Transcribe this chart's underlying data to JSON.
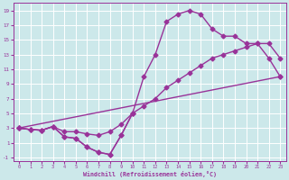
{
  "bg_color": "#cce8ea",
  "grid_color": "#ffffff",
  "line_color": "#993399",
  "marker_size": 2.5,
  "line_width": 1.0,
  "xlabel": "Windchill (Refroidissement éolien,°C)",
  "xlim": [
    -0.5,
    23.5
  ],
  "ylim": [
    -1.5,
    20
  ],
  "xticks": [
    0,
    1,
    2,
    3,
    4,
    5,
    6,
    7,
    8,
    9,
    10,
    11,
    12,
    13,
    14,
    15,
    16,
    17,
    18,
    19,
    20,
    21,
    22,
    23
  ],
  "yticks": [
    -1,
    1,
    3,
    5,
    7,
    9,
    11,
    13,
    15,
    17,
    19
  ],
  "curve1": {
    "x": [
      0,
      1,
      2,
      3,
      4,
      5,
      6,
      7,
      8,
      9,
      10,
      11,
      12,
      13,
      14,
      15,
      16,
      17,
      18,
      19,
      20,
      21,
      22,
      23
    ],
    "y": [
      3,
      2.8,
      2.7,
      3.2,
      1.8,
      1.6,
      0.4,
      -0.3,
      -0.6,
      2.0,
      5.0,
      10.0,
      13.0,
      17.5,
      18.5,
      19.0,
      18.5,
      16.5,
      15.5,
      15.5,
      14.5,
      14.5,
      12.5,
      10.0
    ]
  },
  "curve2": {
    "x": [
      0,
      1,
      2,
      3,
      4,
      5,
      6,
      7,
      8,
      9,
      10,
      11,
      12,
      13,
      14,
      15,
      16,
      17,
      18,
      19,
      20,
      21,
      22,
      23
    ],
    "y": [
      3,
      2.8,
      2.7,
      3.2,
      2.5,
      2.5,
      2.2,
      2.0,
      2.5,
      3.5,
      5.0,
      6.0,
      7.0,
      8.5,
      9.5,
      10.5,
      11.5,
      12.5,
      13.0,
      13.5,
      14.0,
      14.5,
      14.5,
      12.5
    ]
  },
  "curve3": {
    "x": [
      0,
      1,
      2,
      3,
      4,
      5,
      6,
      7,
      8,
      9,
      10
    ],
    "y": [
      3,
      2.8,
      2.7,
      3.2,
      1.8,
      1.6,
      0.4,
      -0.3,
      -0.6,
      2.0,
      5.0
    ]
  },
  "curve4": {
    "x": [
      0,
      23
    ],
    "y": [
      3,
      10
    ]
  }
}
